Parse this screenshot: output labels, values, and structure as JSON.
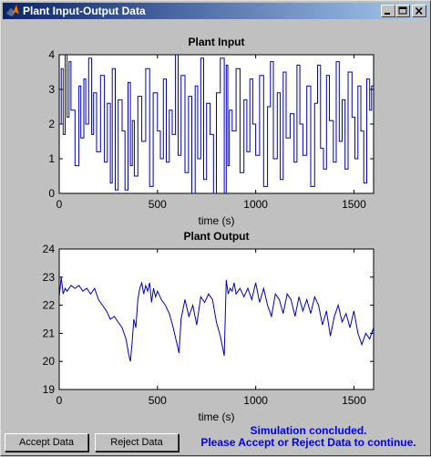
{
  "window": {
    "title": "Plant Input-Output Data",
    "icon": "matlab-logo-icon"
  },
  "title_buttons": {
    "minimize": "minimize-icon",
    "maximize": "maximize-icon",
    "close": "close-icon"
  },
  "chart_data": [
    {
      "type": "line",
      "title": "Plant Input",
      "xlabel": "time (s)",
      "ylabel": "",
      "xlim": [
        0,
        1600
      ],
      "ylim": [
        0,
        4
      ],
      "xticks": [
        0,
        500,
        1000,
        1500
      ],
      "yticks": [
        0,
        1,
        2,
        3,
        4
      ],
      "grid": false,
      "line_color": "#0000b4",
      "step": true,
      "x": [
        0,
        10,
        20,
        30,
        40,
        50,
        60,
        80,
        100,
        110,
        125,
        135,
        150,
        165,
        175,
        190,
        210,
        230,
        245,
        260,
        270,
        285,
        300,
        320,
        335,
        350,
        362,
        372,
        382,
        400,
        420,
        440,
        460,
        478,
        500,
        515,
        530,
        545,
        560,
        575,
        592,
        605,
        620,
        640,
        658,
        675,
        692,
        705,
        720,
        735,
        750,
        768,
        785,
        800,
        820,
        840,
        850,
        858,
        866,
        880,
        900,
        920,
        940,
        955,
        970,
        985,
        1000,
        1020,
        1040,
        1060,
        1075,
        1090,
        1110,
        1125,
        1140,
        1155,
        1175,
        1195,
        1210,
        1225,
        1240,
        1260,
        1280,
        1300,
        1315,
        1330,
        1345,
        1360,
        1375,
        1395,
        1410,
        1425,
        1440,
        1455,
        1470,
        1490,
        1505,
        1520,
        1535,
        1550,
        1565,
        1580,
        1590
      ],
      "values": [
        2.0,
        3.6,
        1.7,
        4.0,
        2.2,
        3.8,
        2.4,
        0.8,
        3.1,
        1.6,
        3.3,
        2.0,
        3.9,
        1.7,
        2.9,
        1.2,
        3.4,
        0.9,
        2.6,
        0.3,
        3.6,
        0.1,
        2.7,
        1.8,
        0.1,
        3.2,
        0.8,
        2.1,
        0.5,
        2.8,
        1.5,
        3.6,
        0.2,
        2.9,
        1.8,
        1.0,
        3.3,
        0.9,
        2.4,
        1.7,
        4.0,
        1.1,
        3.4,
        0.6,
        2.8,
        0.0,
        3.1,
        1.0,
        3.9,
        0.4,
        2.6,
        1.7,
        0.0,
        2.9,
        3.9,
        0.0,
        3.7,
        0.8,
        2.4,
        1.8,
        3.6,
        0.6,
        2.7,
        1.2,
        3.3,
        2.0,
        1.1,
        3.4,
        0.2,
        2.5,
        3.8,
        1.0,
        2.9,
        0.4,
        3.5,
        1.6,
        2.3,
        0.9,
        3.7,
        2.0,
        1.1,
        3.1,
        0.2,
        2.6,
        3.7,
        1.3,
        0.7,
        3.4,
        2.1,
        0.9,
        3.8,
        1.5,
        2.7,
        0.7,
        3.5,
        2.2,
        1.0,
        3.1,
        1.8,
        0.3,
        3.3,
        2.4,
        3.1
      ]
    },
    {
      "type": "line",
      "title": "Plant Output",
      "xlabel": "time (s)",
      "ylabel": "",
      "xlim": [
        0,
        1600
      ],
      "ylim": [
        19,
        24
      ],
      "xticks": [
        0,
        500,
        1000,
        1500
      ],
      "yticks": [
        19,
        20,
        21,
        22,
        23,
        24
      ],
      "grid": false,
      "line_color": "#0000b4",
      "step": false,
      "x": [
        0,
        10,
        20,
        30,
        40,
        60,
        80,
        100,
        120,
        140,
        160,
        180,
        200,
        220,
        240,
        260,
        280,
        300,
        320,
        340,
        355,
        362,
        370,
        380,
        390,
        400,
        410,
        420,
        430,
        440,
        450,
        460,
        470,
        480,
        490,
        500,
        520,
        540,
        560,
        580,
        600,
        610,
        620,
        640,
        660,
        680,
        700,
        720,
        740,
        760,
        780,
        800,
        820,
        840,
        850,
        860,
        870,
        880,
        890,
        900,
        920,
        940,
        960,
        980,
        1000,
        1020,
        1040,
        1060,
        1080,
        1100,
        1120,
        1140,
        1160,
        1180,
        1200,
        1220,
        1240,
        1260,
        1280,
        1300,
        1320,
        1340,
        1360,
        1380,
        1400,
        1420,
        1440,
        1460,
        1480,
        1500,
        1520,
        1540,
        1560,
        1580,
        1600
      ],
      "values": [
        22.3,
        23.0,
        22.4,
        22.6,
        22.5,
        22.7,
        22.6,
        22.7,
        22.5,
        22.6,
        22.4,
        22.6,
        22.2,
        22.0,
        21.8,
        21.5,
        21.6,
        21.4,
        21.2,
        20.8,
        20.2,
        20.0,
        20.6,
        21.5,
        21.2,
        22.2,
        22.6,
        22.8,
        22.4,
        22.7,
        22.5,
        22.8,
        22.1,
        22.6,
        22.3,
        22.5,
        22.2,
        22.0,
        21.7,
        21.2,
        20.6,
        20.3,
        21.5,
        22.2,
        21.6,
        22.0,
        21.3,
        22.3,
        22.1,
        22.4,
        22.2,
        21.4,
        20.9,
        20.2,
        22.9,
        22.4,
        22.6,
        22.5,
        22.8,
        22.4,
        22.6,
        22.3,
        22.6,
        22.2,
        22.8,
        22.1,
        22.6,
        22.0,
        21.6,
        22.4,
        22.2,
        21.7,
        22.4,
        22.2,
        21.6,
        22.3,
        21.8,
        22.2,
        21.7,
        22.3,
        22.0,
        21.3,
        21.8,
        20.9,
        21.6,
        22.0,
        21.4,
        21.7,
        21.2,
        21.8,
        21.0,
        20.6,
        21.0,
        20.8,
        21.2
      ]
    }
  ],
  "buttons": {
    "accept": "Accept Data",
    "reject": "Reject Data"
  },
  "status": {
    "line1": "Simulation concluded.",
    "line2": "Please Accept or Reject Data to continue."
  }
}
